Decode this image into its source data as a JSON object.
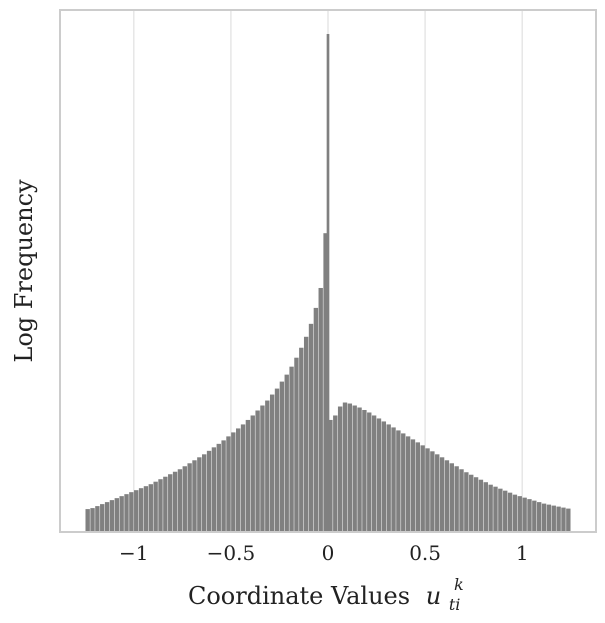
{
  "chart_data": {
    "type": "bar",
    "xlabel": "Coordinate Values",
    "xlabel_math": {
      "base": "u",
      "sub": "ti",
      "sup": "k"
    },
    "ylabel": "Log Frequency",
    "xlim": [
      -1.38,
      1.38
    ],
    "ylim": [
      0,
      1
    ],
    "x_ticks": [
      -1,
      -0.5,
      0,
      0.5,
      1
    ],
    "x_tick_labels": [
      "−1",
      "−0.5",
      "0",
      "0.5",
      "1"
    ],
    "y_scale": "log",
    "y_ticks_shown": false,
    "grid": {
      "x": true,
      "y": false
    },
    "bar_color": "#808080",
    "bar_width": 0.025,
    "bins": [
      {
        "x": -1.2375,
        "y": 0.046
      },
      {
        "x": -1.2125,
        "y": 0.048
      },
      {
        "x": -1.1875,
        "y": 0.052
      },
      {
        "x": -1.1625,
        "y": 0.056
      },
      {
        "x": -1.1375,
        "y": 0.06
      },
      {
        "x": -1.1125,
        "y": 0.064
      },
      {
        "x": -1.0875,
        "y": 0.068
      },
      {
        "x": -1.0625,
        "y": 0.072
      },
      {
        "x": -1.0375,
        "y": 0.076
      },
      {
        "x": -1.0125,
        "y": 0.08
      },
      {
        "x": -0.9875,
        "y": 0.084
      },
      {
        "x": -0.9625,
        "y": 0.088
      },
      {
        "x": -0.9375,
        "y": 0.092
      },
      {
        "x": -0.9125,
        "y": 0.096
      },
      {
        "x": -0.8875,
        "y": 0.101
      },
      {
        "x": -0.8625,
        "y": 0.106
      },
      {
        "x": -0.8375,
        "y": 0.111
      },
      {
        "x": -0.8125,
        "y": 0.116
      },
      {
        "x": -0.7875,
        "y": 0.121
      },
      {
        "x": -0.7625,
        "y": 0.126
      },
      {
        "x": -0.7375,
        "y": 0.132
      },
      {
        "x": -0.7125,
        "y": 0.138
      },
      {
        "x": -0.6875,
        "y": 0.144
      },
      {
        "x": -0.6625,
        "y": 0.15
      },
      {
        "x": -0.6375,
        "y": 0.156
      },
      {
        "x": -0.6125,
        "y": 0.163
      },
      {
        "x": -0.5875,
        "y": 0.17
      },
      {
        "x": -0.5625,
        "y": 0.177
      },
      {
        "x": -0.5375,
        "y": 0.184
      },
      {
        "x": -0.5125,
        "y": 0.192
      },
      {
        "x": -0.4875,
        "y": 0.2
      },
      {
        "x": -0.4625,
        "y": 0.208
      },
      {
        "x": -0.4375,
        "y": 0.216
      },
      {
        "x": -0.4125,
        "y": 0.225
      },
      {
        "x": -0.3875,
        "y": 0.234
      },
      {
        "x": -0.3625,
        "y": 0.244
      },
      {
        "x": -0.3375,
        "y": 0.254
      },
      {
        "x": -0.3125,
        "y": 0.264
      },
      {
        "x": -0.2875,
        "y": 0.276
      },
      {
        "x": -0.2625,
        "y": 0.288
      },
      {
        "x": -0.2375,
        "y": 0.302
      },
      {
        "x": -0.2125,
        "y": 0.316
      },
      {
        "x": -0.1875,
        "y": 0.332
      },
      {
        "x": -0.1625,
        "y": 0.35
      },
      {
        "x": -0.1375,
        "y": 0.37
      },
      {
        "x": -0.1125,
        "y": 0.392
      },
      {
        "x": -0.0875,
        "y": 0.418
      },
      {
        "x": -0.0625,
        "y": 0.45
      },
      {
        "x": -0.0375,
        "y": 0.49
      },
      {
        "x": -0.0125,
        "y": 0.6
      },
      {
        "x": 0.0,
        "y": 1.0
      },
      {
        "x": 0.0125,
        "y": 0.225
      },
      {
        "x": 0.0375,
        "y": 0.234
      },
      {
        "x": 0.0625,
        "y": 0.252
      },
      {
        "x": 0.0875,
        "y": 0.26
      },
      {
        "x": 0.1125,
        "y": 0.258
      },
      {
        "x": 0.1375,
        "y": 0.254
      },
      {
        "x": 0.1625,
        "y": 0.25
      },
      {
        "x": 0.1875,
        "y": 0.245
      },
      {
        "x": 0.2125,
        "y": 0.24
      },
      {
        "x": 0.2375,
        "y": 0.234
      },
      {
        "x": 0.2625,
        "y": 0.228
      },
      {
        "x": 0.2875,
        "y": 0.222
      },
      {
        "x": 0.3125,
        "y": 0.216
      },
      {
        "x": 0.3375,
        "y": 0.21
      },
      {
        "x": 0.3625,
        "y": 0.204
      },
      {
        "x": 0.3875,
        "y": 0.198
      },
      {
        "x": 0.4125,
        "y": 0.192
      },
      {
        "x": 0.4375,
        "y": 0.186
      },
      {
        "x": 0.4625,
        "y": 0.18
      },
      {
        "x": 0.4875,
        "y": 0.174
      },
      {
        "x": 0.5125,
        "y": 0.168
      },
      {
        "x": 0.5375,
        "y": 0.162
      },
      {
        "x": 0.5625,
        "y": 0.156
      },
      {
        "x": 0.5875,
        "y": 0.15
      },
      {
        "x": 0.6125,
        "y": 0.144
      },
      {
        "x": 0.6375,
        "y": 0.138
      },
      {
        "x": 0.6625,
        "y": 0.132
      },
      {
        "x": 0.6875,
        "y": 0.126
      },
      {
        "x": 0.7125,
        "y": 0.12
      },
      {
        "x": 0.7375,
        "y": 0.115
      },
      {
        "x": 0.7625,
        "y": 0.11
      },
      {
        "x": 0.7875,
        "y": 0.105
      },
      {
        "x": 0.8125,
        "y": 0.1
      },
      {
        "x": 0.8375,
        "y": 0.095
      },
      {
        "x": 0.8625,
        "y": 0.091
      },
      {
        "x": 0.8875,
        "y": 0.087
      },
      {
        "x": 0.9125,
        "y": 0.083
      },
      {
        "x": 0.9375,
        "y": 0.079
      },
      {
        "x": 0.9625,
        "y": 0.075
      },
      {
        "x": 0.9875,
        "y": 0.072
      },
      {
        "x": 1.0125,
        "y": 0.069
      },
      {
        "x": 1.0375,
        "y": 0.066
      },
      {
        "x": 1.0625,
        "y": 0.063
      },
      {
        "x": 1.0875,
        "y": 0.06
      },
      {
        "x": 1.1125,
        "y": 0.057
      },
      {
        "x": 1.1375,
        "y": 0.055
      },
      {
        "x": 1.1625,
        "y": 0.053
      },
      {
        "x": 1.1875,
        "y": 0.051
      },
      {
        "x": 1.2125,
        "y": 0.049
      },
      {
        "x": 1.2375,
        "y": 0.047
      }
    ]
  }
}
